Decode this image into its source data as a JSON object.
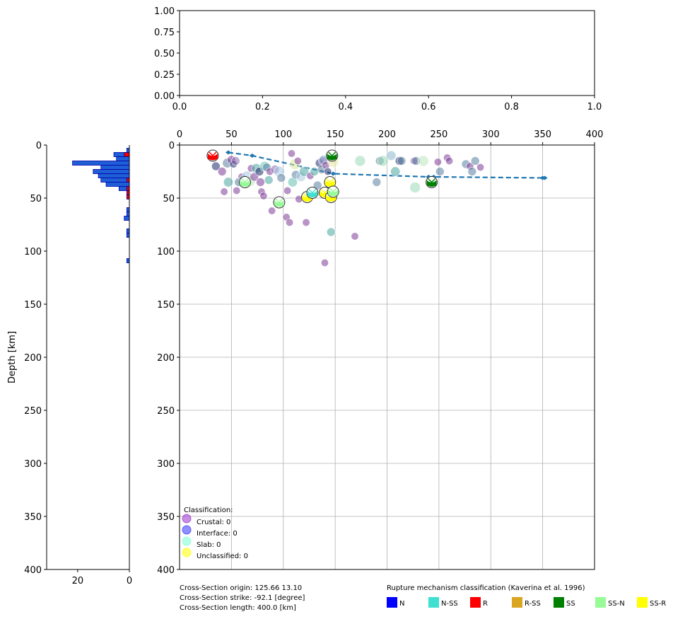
{
  "chart_data": [
    {
      "type": "line",
      "panel": "top",
      "xlim": [
        0,
        1
      ],
      "ylim": [
        0,
        1
      ],
      "x_ticks": [
        "0.0",
        "0.2",
        "0.4",
        "0.6",
        "0.8",
        "1.0"
      ],
      "y_ticks": [
        "0.00",
        "0.25",
        "0.50",
        "0.75",
        "1.00"
      ],
      "grid": false,
      "series": []
    },
    {
      "type": "bar",
      "panel": "left-histogram",
      "orientation": "horizontal",
      "ylabel": "Depth [km]",
      "ylim": [
        400,
        0
      ],
      "xlim": [
        32,
        0
      ],
      "x_ticks": [
        "20",
        "0"
      ],
      "y_ticks": [
        "0",
        "50",
        "100",
        "150",
        "200",
        "250",
        "300",
        "350",
        "400"
      ],
      "bin_width_km": 4,
      "series": [
        {
          "color": "#1f5fd6",
          "bins": [
            {
              "depth": 5,
              "count": 1
            },
            {
              "depth": 9,
              "count": 6
            },
            {
              "depth": 13,
              "count": 5
            },
            {
              "depth": 17,
              "count": 22
            },
            {
              "depth": 21,
              "count": 11
            },
            {
              "depth": 25,
              "count": 14
            },
            {
              "depth": 29,
              "count": 12
            },
            {
              "depth": 33,
              "count": 11
            },
            {
              "depth": 37,
              "count": 9
            },
            {
              "depth": 41,
              "count": 4
            },
            {
              "depth": 61,
              "count": 1
            },
            {
              "depth": 65,
              "count": 1
            },
            {
              "depth": 69,
              "count": 2
            },
            {
              "depth": 81,
              "count": 1
            },
            {
              "depth": 85,
              "count": 1
            },
            {
              "depth": 109,
              "count": 1
            }
          ]
        },
        {
          "color": "#ee0000",
          "bins": [
            {
              "depth": 9,
              "count": 2
            },
            {
              "depth": 33,
              "count": 1
            },
            {
              "depth": 41,
              "count": 1
            },
            {
              "depth": 45,
              "count": 1
            },
            {
              "depth": 49,
              "count": 1
            }
          ]
        }
      ]
    },
    {
      "type": "scatter",
      "panel": "cross-section",
      "xlim": [
        0,
        400
      ],
      "ylim": [
        400,
        0
      ],
      "x_ticks": [
        "0",
        "50",
        "100",
        "150",
        "200",
        "250",
        "300",
        "350",
        "400"
      ],
      "y_ticks": [
        "0",
        "50",
        "100",
        "150",
        "200",
        "250",
        "300",
        "350",
        "400"
      ],
      "grid": true,
      "series": [
        {
          "kind": "trench-profile",
          "style": "dashed",
          "color": "#1f77b4",
          "points": [
            [
              47,
              7
            ],
            [
              70,
              10
            ],
            [
              148,
              27
            ],
            [
              240,
              30
            ],
            [
              245,
              30
            ],
            [
              350,
              31
            ],
            [
              352,
              31
            ]
          ]
        },
        {
          "kind": "hypocenters",
          "points": [
            [
              31,
              10,
              "#7d3c98",
              10
            ],
            [
              35,
              20,
              "#1b2a6b",
              8
            ],
            [
              41,
              25,
              "#7d3c98",
              8
            ],
            [
              43,
              44,
              "#7d3c98",
              7
            ],
            [
              46,
              17,
              "#5a7fa0",
              9
            ],
            [
              47,
              35,
              "#4aa6a0",
              9
            ],
            [
              50,
              14,
              "#7d3c98",
              8
            ],
            [
              52,
              18,
              "#1b2a6b",
              7
            ],
            [
              54,
              15,
              "#8c6db0",
              8
            ],
            [
              55,
              43,
              "#7d3c98",
              7
            ],
            [
              57,
              35,
              "#5a7fa0",
              8
            ],
            [
              60,
              30,
              "#7d3c98",
              7
            ],
            [
              62,
              33,
              "#4aa6a0",
              9
            ],
            [
              65,
              29,
              "#a8c8e0",
              9
            ],
            [
              68,
              34,
              "#c0e6c0",
              10
            ],
            [
              69,
              22,
              "#7d3c98",
              7
            ],
            [
              72,
              30,
              "#7d3c98",
              8
            ],
            [
              74,
              22,
              "#4aa6a0",
              9
            ],
            [
              77,
              25,
              "#1b2a6b",
              8
            ],
            [
              78,
              35,
              "#7d3c98",
              8
            ],
            [
              79,
              44,
              "#7d3c98",
              7
            ],
            [
              81,
              48,
              "#7d3c98",
              7
            ],
            [
              82,
              20,
              "#63c0b0",
              9
            ],
            [
              84,
              21,
              "#5a7fa0",
              8
            ],
            [
              86,
              33,
              "#4aa6a0",
              8
            ],
            [
              87,
              25,
              "#7d3c98",
              7
            ],
            [
              89,
              62,
              "#7d3c98",
              7
            ],
            [
              92,
              23,
              "#8c6db0",
              8
            ],
            [
              96,
              25,
              "#a8c8e0",
              10
            ],
            [
              98,
              31,
              "#5a7fa0",
              8
            ],
            [
              103,
              68,
              "#7d3c98",
              7
            ],
            [
              104,
              43,
              "#7d3c98",
              7
            ],
            [
              106,
              73,
              "#7d3c98",
              7
            ],
            [
              108,
              8,
              "#7d3c98",
              7
            ],
            [
              109,
              35,
              "#63c0b0",
              9
            ],
            [
              111,
              18,
              "#dde89a",
              10
            ],
            [
              112,
              28,
              "#5a7fa0",
              8
            ],
            [
              114,
              15,
              "#7d3c98",
              7
            ],
            [
              115,
              51,
              "#7d3c98",
              7
            ],
            [
              117,
              30,
              "#a8c8e0",
              9
            ],
            [
              120,
              25,
              "#4aa6a0",
              9
            ],
            [
              122,
              73,
              "#7d3c98",
              7
            ],
            [
              126,
              29,
              "#7d3c98",
              7
            ],
            [
              130,
              25,
              "#4aa6a0",
              8
            ],
            [
              133,
              38,
              "#5a7fa0",
              8
            ],
            [
              135,
              17,
              "#1b2a6b",
              8
            ],
            [
              137,
              23,
              "#5a7fa0",
              8
            ],
            [
              138,
              15,
              "#7d3c98",
              8
            ],
            [
              139,
              14,
              "#8ab8d0",
              9
            ],
            [
              140,
              111,
              "#7d3c98",
              7
            ],
            [
              141,
              19,
              "#7d3c98",
              7
            ],
            [
              143,
              25,
              "#1b2a6b",
              7
            ],
            [
              146,
              82,
              "#4aa6a0",
              8
            ],
            [
              148,
              16,
              "#e8e8a0",
              10
            ],
            [
              169,
              86,
              "#7d3c98",
              7
            ],
            [
              174,
              15,
              "#9ad9b8",
              10
            ],
            [
              190,
              35,
              "#5a7fa0",
              8
            ],
            [
              193,
              15,
              "#5a7fa0",
              8
            ],
            [
              196,
              15,
              "#9ad9b8",
              10
            ],
            [
              204,
              10,
              "#8ab8d0",
              9
            ],
            [
              208,
              25,
              "#4aa6a0",
              9
            ],
            [
              212,
              15,
              "#1b2a6b",
              8
            ],
            [
              214,
              15,
              "#5a7fa0",
              8
            ],
            [
              226,
              15,
              "#7d3c98",
              7
            ],
            [
              228,
              15,
              "#5a7fa0",
              8
            ],
            [
              227,
              40,
              "#9ad9b8",
              10
            ],
            [
              235,
              15,
              "#c0e6c0",
              10
            ],
            [
              249,
              16,
              "#7d3c98",
              7
            ],
            [
              251,
              25,
              "#5a7fa0",
              8
            ],
            [
              258,
              12,
              "#7d3c98",
              7
            ],
            [
              260,
              15,
              "#7d3c98",
              7
            ],
            [
              276,
              18,
              "#5a7fa0",
              8
            ],
            [
              280,
              20,
              "#7d3c98",
              7
            ],
            [
              282,
              25,
              "#5a7fa0",
              8
            ],
            [
              285,
              15,
              "#5a7fa0",
              8
            ],
            [
              290,
              21,
              "#7d3c98",
              7
            ]
          ]
        },
        {
          "kind": "focal-mechanisms",
          "points": [
            [
              32,
              10,
              "#ff0000"
            ],
            [
              147,
              10,
              "#008000"
            ],
            [
              63,
              35,
              "#98fb98"
            ],
            [
              96,
              54,
              "#98fb98"
            ],
            [
              123,
              49,
              "#ffff00"
            ],
            [
              128,
              45,
              "#40e0d0"
            ],
            [
              140,
              45,
              "#ffff00"
            ],
            [
              145,
              35,
              "#ffff00"
            ],
            [
              146,
              49,
              "#ffff00"
            ],
            [
              148,
              44,
              "#98fb98"
            ],
            [
              243,
              35,
              "#008000"
            ]
          ]
        }
      ]
    }
  ],
  "class_legend": {
    "title": "Classification:",
    "items": [
      {
        "label": "Crustal: 0",
        "color": "#9932cc"
      },
      {
        "label": "Interface: 0",
        "color": "#3333ff"
      },
      {
        "label": "Slab: 0",
        "color": "#7fffd4"
      },
      {
        "label": "Unclassified: 0",
        "color": "#ffff00"
      }
    ]
  },
  "info": {
    "origin": "Cross-Section origin: 125.66 13.10",
    "strike": "Cross-Section strike: -92.1 [degree]",
    "length": "Cross-Section length: 400.0 [km]"
  },
  "rupture_legend": {
    "title": "Rupture mechanism classification (Kaverina et al. 1996)",
    "items": [
      {
        "label": "N",
        "color": "#0000ff"
      },
      {
        "label": "N-SS",
        "color": "#40e0d0"
      },
      {
        "label": "R",
        "color": "#ff0000"
      },
      {
        "label": "R-SS",
        "color": "#daa520"
      },
      {
        "label": "SS",
        "color": "#008000"
      },
      {
        "label": "SS-N",
        "color": "#98fb98"
      },
      {
        "label": "SS-R",
        "color": "#ffff00"
      }
    ]
  }
}
